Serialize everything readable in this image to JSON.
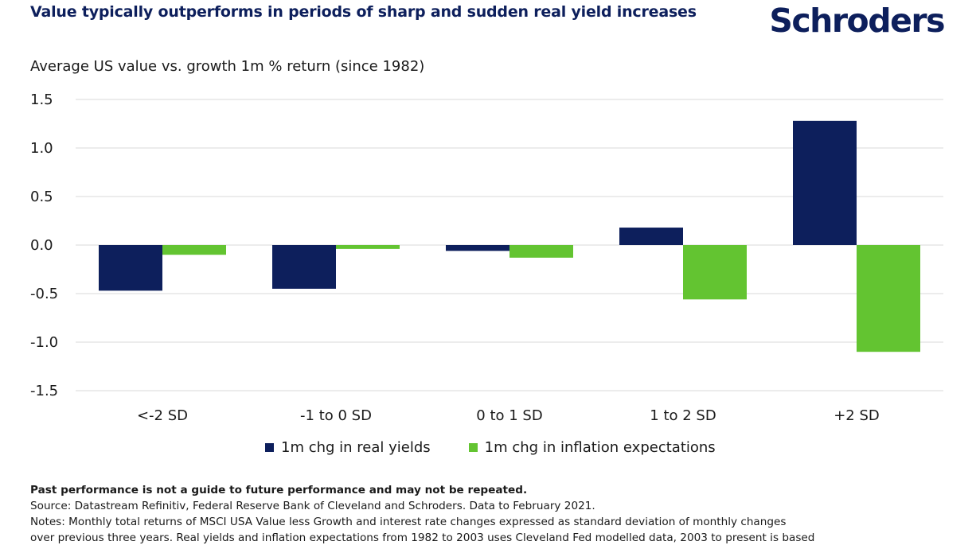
{
  "header": {
    "title": "Value typically outperforms in periods of sharp and sudden real yield increases",
    "logo_text": "Schroders"
  },
  "chart_data": {
    "type": "bar",
    "title": "Value typically outperforms in periods of sharp and sudden real yield increases",
    "subtitle": "Average US value vs. growth 1m % return (since 1982)",
    "categories": [
      "<-2 SD",
      "-1 to 0 SD",
      "0 to 1 SD",
      "1 to 2 SD",
      "+2 SD"
    ],
    "series": [
      {
        "name": "1m chg in real yields",
        "color": "#0d1f5c",
        "values": [
          -0.47,
          -0.45,
          -0.06,
          0.18,
          1.28
        ]
      },
      {
        "name": "1m chg in inflation expectations",
        "color": "#63c431",
        "values": [
          -0.1,
          -0.04,
          -0.13,
          -0.56,
          -1.1
        ]
      }
    ],
    "yticks": [
      "1.5",
      "1.0",
      "0.5",
      "0.0",
      "-0.5",
      "-1.0",
      "-1.5"
    ],
    "ylim": [
      -1.5,
      1.5
    ],
    "grid": true,
    "legend_position": "bottom"
  },
  "footer": {
    "disclaimer": "Past performance is not a guide to future performance and may not be repeated.",
    "source": "Source: Datastream Refinitiv, Federal Reserve Bank of Cleveland and Schroders. Data to February 2021.",
    "notes_line1": "Notes: Monthly total returns of MSCI USA Value less Growth and interest rate changes expressed as standard deviation of monthly changes",
    "notes_line2": "over previous three years. Real yields and inflation expectations from 1982 to 2003 uses Cleveland Fed modelled data, 2003 to present is based"
  }
}
